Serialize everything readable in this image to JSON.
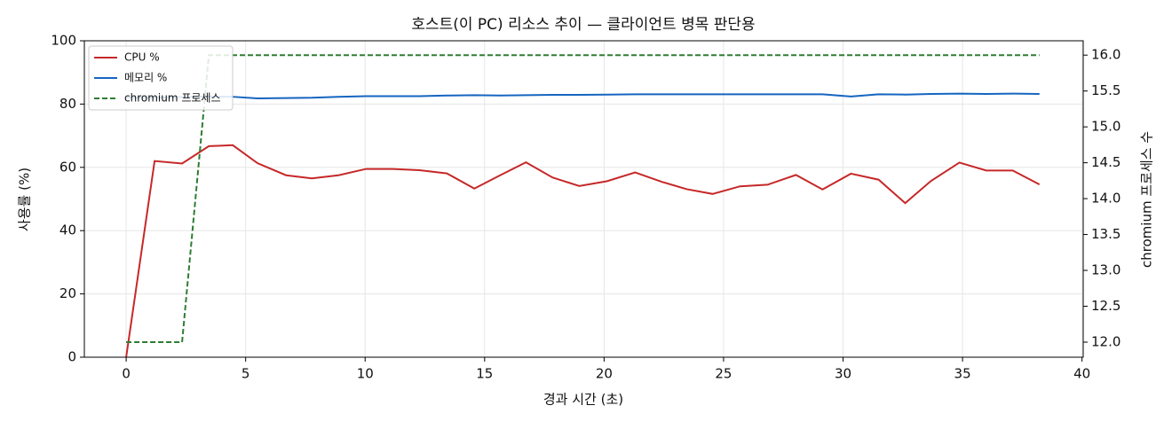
{
  "chart_data": {
    "type": "line",
    "title": "호스트(이 PC) 리소스 추이 — 클라이언트 병목 판단용",
    "xlabel": "경과 시간 (초)",
    "ylabel": "사용률 (%)",
    "y2label": "chromium 프로세스 수",
    "x": [
      0,
      1.19,
      2.34,
      3.46,
      4.46,
      5.5,
      6.69,
      7.77,
      8.88,
      10.04,
      11.15,
      12.27,
      13.42,
      14.57,
      15.65,
      16.73,
      17.84,
      18.96,
      20.11,
      21.3,
      22.42,
      23.46,
      24.54,
      25.69,
      26.84,
      28.03,
      29.14,
      30.33,
      31.49,
      32.6,
      33.68,
      34.87,
      35.99,
      37.1,
      38.22
    ],
    "series": [
      {
        "name": "CPU %",
        "color": "#c62828",
        "values": [
          0,
          62,
          61.2,
          66.7,
          67,
          61.3,
          57.5,
          56.5,
          57.5,
          59.5,
          59.5,
          59.1,
          58.1,
          53.3,
          57.5,
          61.6,
          56.8,
          54.1,
          55.6,
          58.4,
          55.4,
          53.1,
          51.6,
          54,
          54.5,
          57.6,
          53,
          58,
          56.1,
          48.7,
          55.7,
          61.5,
          59,
          59,
          54.6
        ]
      },
      {
        "name": "메모리 %",
        "color": "#1565c0",
        "values": [
          82,
          82,
          82.2,
          82.4,
          82.3,
          81.8,
          81.9,
          82,
          82.3,
          82.5,
          82.5,
          82.5,
          82.7,
          82.8,
          82.7,
          82.8,
          82.9,
          82.9,
          83,
          83.1,
          83.1,
          83.1,
          83.1,
          83.1,
          83.1,
          83.1,
          83.1,
          82.4,
          83.1,
          83,
          83.2,
          83.3,
          83.2,
          83.3,
          83.2
        ]
      },
      {
        "name": "chromium 프로세스",
        "color": "#2e7d32",
        "linestyle": "dashed",
        "axis": "y2",
        "values": [
          12,
          12,
          12,
          16,
          16,
          16,
          16,
          16,
          16,
          16,
          16,
          16,
          16,
          16,
          16,
          16,
          16,
          16,
          16,
          16,
          16,
          16,
          16,
          16,
          16,
          16,
          16,
          16,
          16,
          16,
          16,
          16,
          16,
          16,
          16
        ]
      }
    ],
    "xlim": [
      -1.75,
      40.05
    ],
    "xticks": [
      0,
      5,
      10,
      15,
      20,
      25,
      30,
      35,
      40
    ],
    "ylim": [
      0,
      100
    ],
    "yticks": [
      0,
      20,
      40,
      60,
      80,
      100
    ],
    "y2lim": [
      11.79,
      16.2
    ],
    "y2ticks": [
      {
        "value": 12,
        "label": "12.0"
      },
      12.5,
      {
        "value": 13,
        "label": "13.0"
      },
      13.5,
      {
        "value": 14,
        "label": "14.0"
      },
      14.5,
      {
        "value": 15,
        "label": "15.0"
      },
      15.5,
      {
        "value": 16,
        "label": "16.0"
      }
    ],
    "grid": true,
    "legend": "upper-left"
  }
}
